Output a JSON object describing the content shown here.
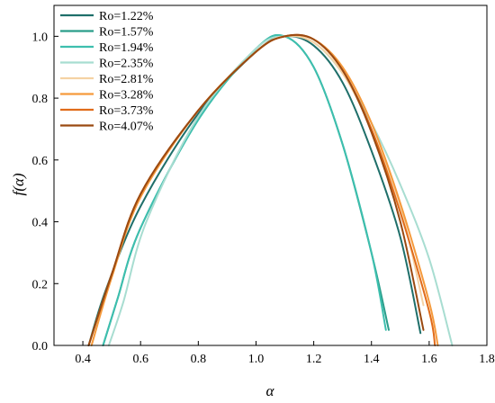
{
  "chart_data": {
    "type": "line",
    "xlabel": "α",
    "ylabel": "f(α)",
    "xlim": [
      0.3,
      1.8
    ],
    "ylim": [
      0.0,
      1.1
    ],
    "xticks": [
      "0.4",
      "0.6",
      "0.8",
      "1.0",
      "1.2",
      "1.4",
      "1.6",
      "1.8"
    ],
    "yticks": [
      "0.0",
      "0.2",
      "0.4",
      "0.6",
      "0.8",
      "1.0"
    ],
    "grid": false,
    "legend_position": "top-left",
    "series": [
      {
        "name": "Ro=1.22%",
        "color": "#1f6f6a",
        "points": [
          [
            0.42,
            0.0
          ],
          [
            0.48,
            0.18
          ],
          [
            0.6,
            0.45
          ],
          [
            0.8,
            0.75
          ],
          [
            1.0,
            0.95
          ],
          [
            1.1,
            1.0
          ],
          [
            1.2,
            0.97
          ],
          [
            1.3,
            0.85
          ],
          [
            1.4,
            0.63
          ],
          [
            1.5,
            0.35
          ],
          [
            1.57,
            0.04
          ]
        ]
      },
      {
        "name": "Ro=1.57%",
        "color": "#2a9d8a",
        "points": [
          [
            0.47,
            0.0
          ],
          [
            0.52,
            0.15
          ],
          [
            0.6,
            0.38
          ],
          [
            0.8,
            0.73
          ],
          [
            1.0,
            0.96
          ],
          [
            1.1,
            1.0
          ],
          [
            1.2,
            0.9
          ],
          [
            1.3,
            0.65
          ],
          [
            1.4,
            0.3
          ],
          [
            1.46,
            0.05
          ]
        ]
      },
      {
        "name": "Ro=1.94%",
        "color": "#3dbfae",
        "points": [
          [
            0.47,
            0.0
          ],
          [
            0.52,
            0.15
          ],
          [
            0.6,
            0.38
          ],
          [
            0.8,
            0.73
          ],
          [
            1.0,
            0.96
          ],
          [
            1.1,
            1.0
          ],
          [
            1.2,
            0.9
          ],
          [
            1.3,
            0.65
          ],
          [
            1.4,
            0.3
          ],
          [
            1.45,
            0.05
          ]
        ]
      },
      {
        "name": "Ro=2.35%",
        "color": "#a8ddd1",
        "points": [
          [
            0.49,
            0.0
          ],
          [
            0.54,
            0.14
          ],
          [
            0.62,
            0.4
          ],
          [
            0.8,
            0.74
          ],
          [
            1.0,
            0.96
          ],
          [
            1.1,
            1.0
          ],
          [
            1.2,
            0.98
          ],
          [
            1.3,
            0.88
          ],
          [
            1.4,
            0.72
          ],
          [
            1.5,
            0.52
          ],
          [
            1.6,
            0.28
          ],
          [
            1.68,
            0.0
          ]
        ]
      },
      {
        "name": "Ro=2.81%",
        "color": "#f5d2a4",
        "points": [
          [
            0.43,
            0.0
          ],
          [
            0.5,
            0.22
          ],
          [
            0.6,
            0.48
          ],
          [
            0.8,
            0.76
          ],
          [
            1.0,
            0.95
          ],
          [
            1.1,
            1.0
          ],
          [
            1.2,
            0.98
          ],
          [
            1.3,
            0.88
          ],
          [
            1.4,
            0.7
          ],
          [
            1.5,
            0.45
          ],
          [
            1.58,
            0.13
          ]
        ]
      },
      {
        "name": "Ro=3.28%",
        "color": "#f59a3c",
        "points": [
          [
            0.43,
            0.0
          ],
          [
            0.5,
            0.22
          ],
          [
            0.6,
            0.48
          ],
          [
            0.8,
            0.76
          ],
          [
            1.0,
            0.95
          ],
          [
            1.1,
            1.0
          ],
          [
            1.2,
            0.99
          ],
          [
            1.3,
            0.9
          ],
          [
            1.4,
            0.72
          ],
          [
            1.5,
            0.46
          ],
          [
            1.6,
            0.14
          ],
          [
            1.63,
            0.0
          ]
        ]
      },
      {
        "name": "Ro=3.73%",
        "color": "#e06b1a",
        "points": [
          [
            0.42,
            0.0
          ],
          [
            0.5,
            0.23
          ],
          [
            0.6,
            0.49
          ],
          [
            0.8,
            0.76
          ],
          [
            1.0,
            0.95
          ],
          [
            1.1,
            1.0
          ],
          [
            1.2,
            0.99
          ],
          [
            1.3,
            0.89
          ],
          [
            1.4,
            0.7
          ],
          [
            1.5,
            0.43
          ],
          [
            1.6,
            0.11
          ],
          [
            1.62,
            0.0
          ]
        ]
      },
      {
        "name": "Ro=4.07%",
        "color": "#9a4a12",
        "points": [
          [
            0.42,
            0.0
          ],
          [
            0.5,
            0.23
          ],
          [
            0.6,
            0.49
          ],
          [
            0.8,
            0.76
          ],
          [
            1.0,
            0.95
          ],
          [
            1.1,
            1.0
          ],
          [
            1.2,
            0.99
          ],
          [
            1.3,
            0.89
          ],
          [
            1.4,
            0.69
          ],
          [
            1.5,
            0.4
          ],
          [
            1.58,
            0.05
          ]
        ]
      }
    ]
  }
}
